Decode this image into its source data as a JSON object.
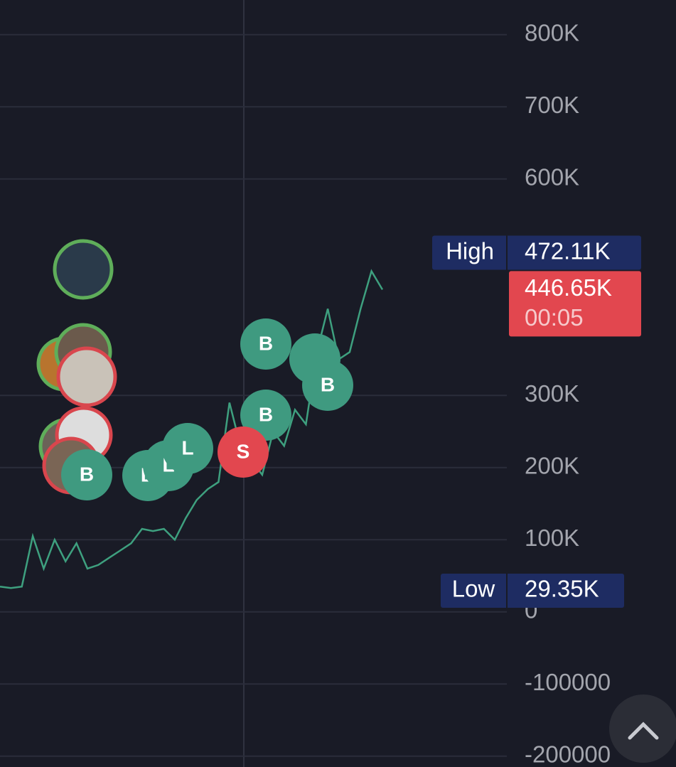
{
  "chart_data": {
    "type": "line",
    "values": [
      35000,
      33000,
      35000,
      105000,
      60000,
      100000,
      70000,
      95000,
      60000,
      65000,
      75000,
      85000,
      95000,
      115000,
      112000,
      115000,
      100000,
      130000,
      155000,
      170000,
      180000,
      290000,
      230000,
      210000,
      190000,
      250000,
      230000,
      280000,
      260000,
      360000,
      420000,
      350000,
      360000,
      420000,
      472110,
      446650
    ],
    "color": "#3ea07f",
    "ylim": [
      -215000,
      848000
    ],
    "yticks": [
      {
        "value": 800000,
        "label": "800K"
      },
      {
        "value": 700000,
        "label": "700K"
      },
      {
        "value": 600000,
        "label": "600K"
      },
      {
        "value": 300000,
        "label": "300K"
      },
      {
        "value": 200000,
        "label": "200K"
      },
      {
        "value": 100000,
        "label": "100K"
      },
      0,
      -100000,
      -200000
    ],
    "grid": true,
    "high": {
      "label": "High",
      "value": 472110,
      "value_label": "472.11K"
    },
    "last": {
      "value": 446650,
      "value_label": "446.65K",
      "countdown": "00:05"
    },
    "low": {
      "label": "Low",
      "value": 29350,
      "value_label": "29.35K"
    },
    "markers": [
      "B",
      "B",
      "B",
      "S",
      "B",
      "L",
      "L",
      "B"
    ]
  }
}
